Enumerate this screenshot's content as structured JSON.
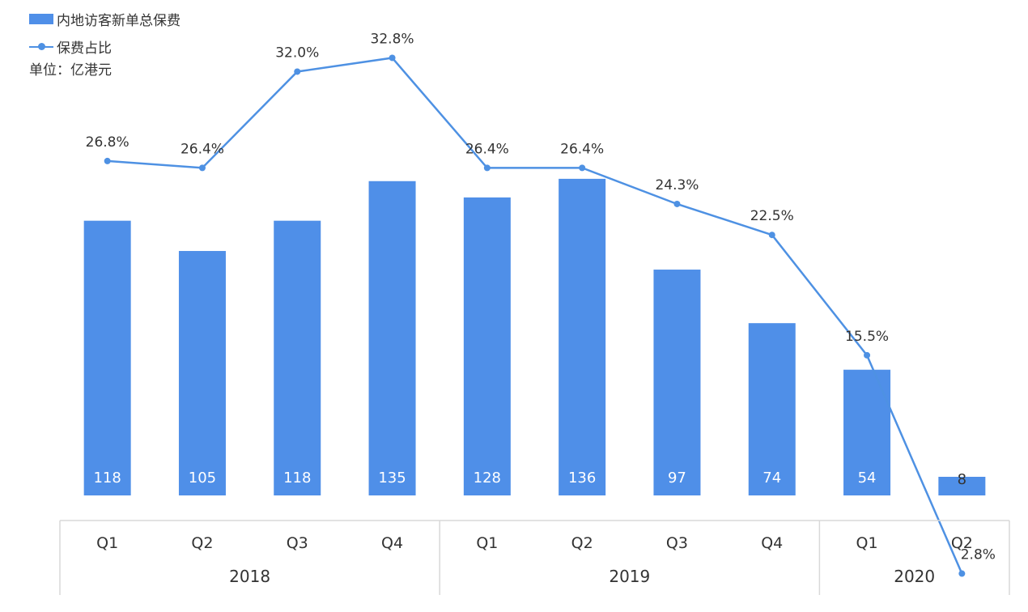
{
  "colors": {
    "bar": "#4f8fe8",
    "line": "#4e91e3",
    "axis": "#d9d9d9",
    "text": "#333333",
    "bar_label": "#ffffff"
  },
  "legend": {
    "bar_label": "内地访客新单总保费",
    "line_label": "保费占比"
  },
  "unit_label": "单位：亿港元",
  "chart_data": {
    "type": "bar",
    "categories": [
      "Q1",
      "Q2",
      "Q3",
      "Q4",
      "Q1",
      "Q2",
      "Q3",
      "Q4",
      "Q1",
      "Q2"
    ],
    "groups": [
      {
        "label": "2018",
        "count": 4
      },
      {
        "label": "2019",
        "count": 4
      },
      {
        "label": "2020",
        "count": 2
      }
    ],
    "series": [
      {
        "name": "内地访客新单总保费",
        "type": "bar",
        "values": [
          118,
          105,
          118,
          135,
          128,
          136,
          97,
          74,
          54,
          8
        ],
        "labels": [
          "118",
          "105",
          "118",
          "135",
          "128",
          "136",
          "97",
          "74",
          "54",
          "8"
        ]
      },
      {
        "name": "保费占比",
        "type": "line",
        "values": [
          26.8,
          26.4,
          32.0,
          32.8,
          26.4,
          26.4,
          24.3,
          22.5,
          15.5,
          2.8
        ],
        "labels": [
          "26.8%",
          "26.4%",
          "32.0%",
          "32.8%",
          "26.4%",
          "26.4%",
          "24.3%",
          "22.5%",
          "15.5%",
          "2.8%"
        ]
      }
    ],
    "title": "",
    "ylabel": "单位：亿港元",
    "ylim_bar": [
      0,
      145
    ],
    "ylim_line": [
      0,
      34
    ],
    "legend_position": "top-left",
    "grid": false
  }
}
